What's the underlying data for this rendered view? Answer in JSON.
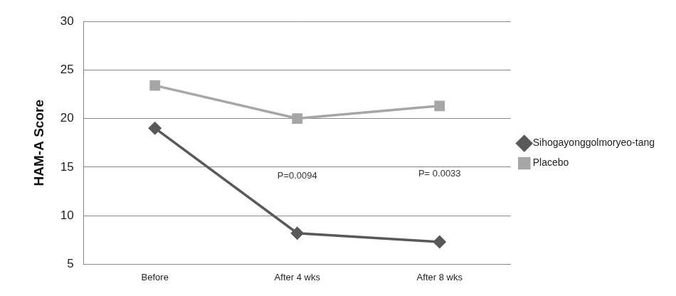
{
  "chart_data": {
    "type": "line",
    "y_label": "HAM-A Score",
    "categories": [
      "Before",
      "After 4 wks",
      "After 8 wks"
    ],
    "series": [
      {
        "name": "Sihogayonggolmoryeo-tang",
        "color": "#595959",
        "marker": "diamond",
        "values": [
          19,
          8.2,
          7.3
        ]
      },
      {
        "name": "Placebo",
        "color": "#a6a6a6",
        "marker": "square",
        "values": [
          23.4,
          20,
          21.3
        ]
      }
    ],
    "annotations": [
      {
        "text": "P=0.0094",
        "category": "After 4 wks"
      },
      {
        "text": "P= 0.0033",
        "category": "After 8 wks"
      }
    ],
    "ylim": [
      5,
      30
    ],
    "yticks": [
      5,
      10,
      15,
      20,
      25,
      30
    ],
    "grid": true,
    "legend": "right"
  }
}
